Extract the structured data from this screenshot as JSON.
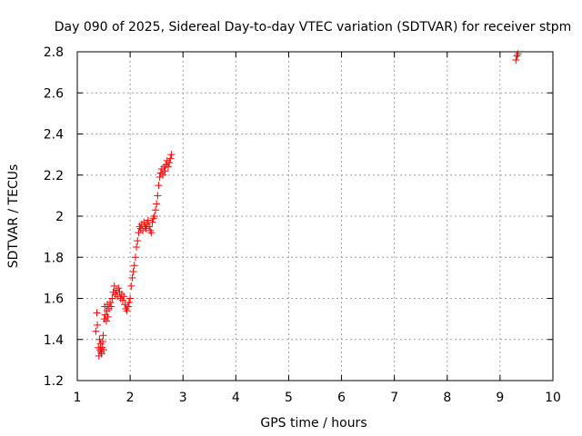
{
  "chart_data": {
    "type": "scatter",
    "title": "Day 090 of 2025, Sidereal Day-to-day VTEC variation (SDTVAR) for receiver stpm",
    "xlabel": "GPS time / hours",
    "ylabel": "SDTVAR / TECUs",
    "xlim": [
      1,
      10
    ],
    "ylim": [
      1.2,
      2.8
    ],
    "xticks": [
      1,
      2,
      3,
      4,
      5,
      6,
      7,
      8,
      9,
      10
    ],
    "yticks": [
      1.2,
      1.4,
      1.6,
      1.8,
      2.0,
      2.2,
      2.4,
      2.6,
      2.8
    ],
    "xtick_labels": [
      "1",
      "2",
      "3",
      "4",
      "5",
      "6",
      "7",
      "8",
      "9",
      "10"
    ],
    "ytick_labels": [
      "1.2",
      "1.4",
      "1.6",
      "1.8",
      "2",
      "2.2",
      "2.4",
      "2.6",
      "2.8"
    ],
    "grid": true,
    "marker": "+",
    "color": "#ff0000",
    "series": [
      {
        "name": "SDTVAR",
        "x": [
          1.35,
          1.37,
          1.38,
          1.4,
          1.41,
          1.42,
          1.43,
          1.44,
          1.45,
          1.46,
          1.47,
          1.48,
          1.49,
          1.5,
          1.51,
          1.52,
          1.53,
          1.55,
          1.56,
          1.57,
          1.58,
          1.6,
          1.62,
          1.64,
          1.66,
          1.68,
          1.7,
          1.72,
          1.74,
          1.76,
          1.78,
          1.8,
          1.82,
          1.84,
          1.86,
          1.88,
          1.9,
          1.92,
          1.94,
          1.96,
          1.98,
          2.0,
          2.02,
          2.04,
          2.06,
          2.08,
          2.1,
          2.12,
          2.14,
          2.16,
          2.18,
          2.2,
          2.22,
          2.24,
          2.26,
          2.28,
          2.3,
          2.32,
          2.34,
          2.36,
          2.38,
          2.4,
          2.42,
          2.44,
          2.46,
          2.48,
          2.5,
          2.52,
          2.54,
          2.56,
          2.58,
          2.6,
          2.62,
          2.64,
          2.66,
          2.68,
          2.7,
          2.72,
          2.74,
          2.76,
          2.78,
          9.3,
          9.32,
          9.34
        ],
        "y": [
          1.44,
          1.53,
          1.47,
          1.36,
          1.32,
          1.4,
          1.35,
          1.38,
          1.34,
          1.33,
          1.36,
          1.39,
          1.42,
          1.35,
          1.5,
          1.56,
          1.52,
          1.49,
          1.54,
          1.57,
          1.51,
          1.55,
          1.58,
          1.56,
          1.6,
          1.63,
          1.66,
          1.62,
          1.64,
          1.61,
          1.65,
          1.63,
          1.6,
          1.62,
          1.59,
          1.61,
          1.57,
          1.55,
          1.54,
          1.56,
          1.58,
          1.6,
          1.66,
          1.7,
          1.73,
          1.76,
          1.8,
          1.85,
          1.88,
          1.92,
          1.95,
          1.94,
          1.96,
          1.93,
          1.97,
          1.95,
          1.94,
          1.96,
          1.98,
          1.95,
          1.93,
          1.92,
          1.97,
          1.99,
          2.0,
          2.03,
          2.06,
          2.1,
          2.15,
          2.19,
          2.21,
          2.23,
          2.2,
          2.24,
          2.22,
          2.25,
          2.27,
          2.24,
          2.26,
          2.28,
          2.3,
          2.76,
          2.78,
          2.79
        ]
      }
    ]
  }
}
